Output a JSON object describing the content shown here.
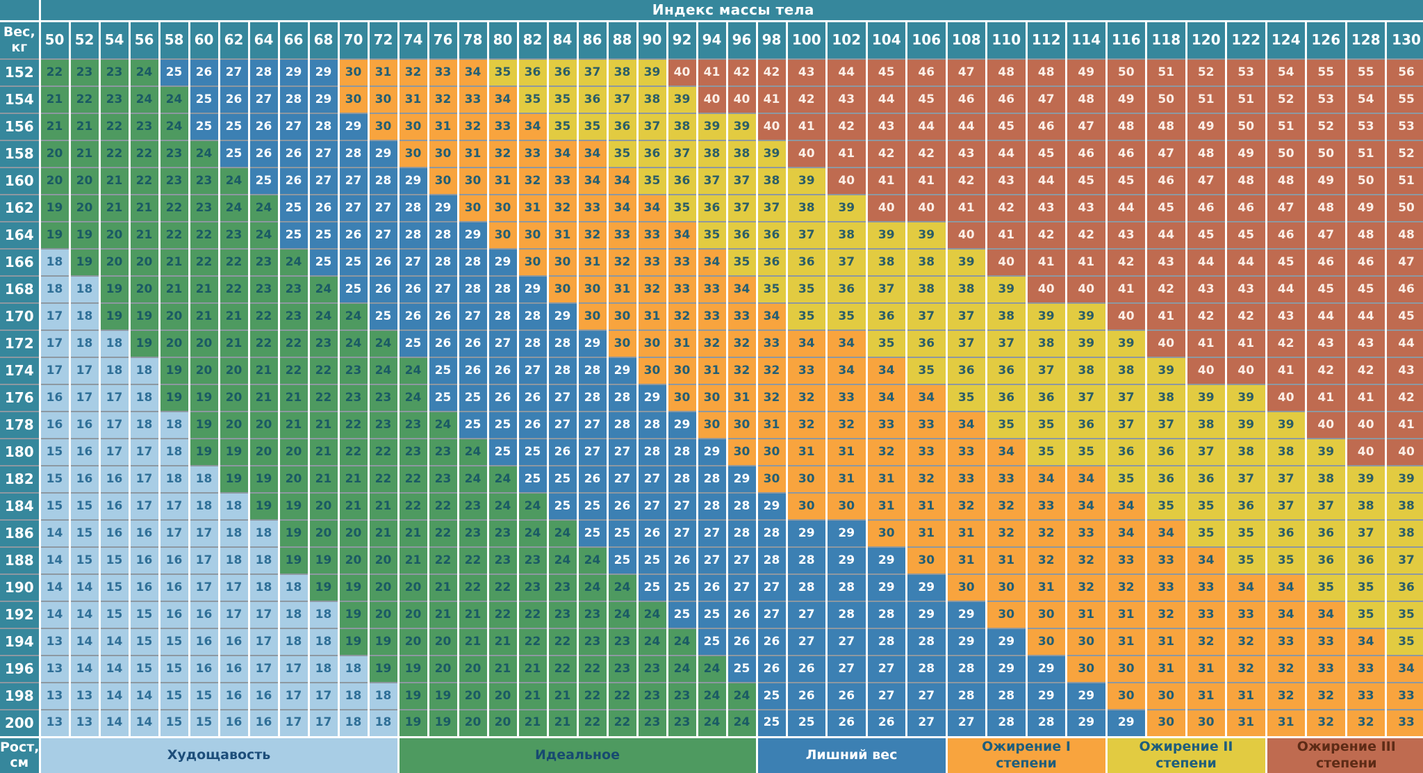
{
  "chart_data": {
    "type": "heatmap",
    "title": "Индекс массы тела",
    "xlabel": "Вес,\nкг",
    "ylabel": "Рост,\nсм",
    "x": [
      50,
      52,
      54,
      56,
      58,
      60,
      62,
      64,
      66,
      68,
      70,
      72,
      74,
      76,
      78,
      80,
      82,
      84,
      86,
      88,
      90,
      92,
      94,
      96,
      98,
      100,
      102,
      104,
      106,
      108,
      110,
      112,
      114,
      116,
      118,
      120,
      122,
      124,
      126,
      128,
      130
    ],
    "y": [
      152,
      154,
      156,
      158,
      160,
      162,
      164,
      166,
      168,
      170,
      172,
      174,
      176,
      178,
      180,
      182,
      184,
      186,
      188,
      190,
      192,
      194,
      196,
      198,
      200
    ],
    "values": [
      [
        22,
        23,
        23,
        24,
        25,
        26,
        27,
        28,
        29,
        29,
        30,
        31,
        32,
        33,
        34,
        35,
        36,
        36,
        37,
        38,
        39,
        40,
        41,
        42,
        42,
        43,
        44,
        45,
        46,
        47,
        48,
        48,
        49,
        50,
        51,
        52,
        53,
        54,
        55,
        55,
        56
      ],
      [
        21,
        22,
        23,
        24,
        24,
        25,
        26,
        27,
        28,
        29,
        30,
        30,
        31,
        32,
        33,
        34,
        35,
        35,
        36,
        37,
        38,
        39,
        40,
        40,
        41,
        42,
        43,
        44,
        45,
        46,
        46,
        47,
        48,
        49,
        50,
        51,
        51,
        52,
        53,
        54,
        55
      ],
      [
        21,
        21,
        22,
        23,
        24,
        25,
        25,
        26,
        27,
        28,
        29,
        30,
        30,
        31,
        32,
        33,
        34,
        35,
        35,
        36,
        37,
        38,
        39,
        39,
        40,
        41,
        42,
        43,
        44,
        44,
        45,
        46,
        47,
        48,
        48,
        49,
        50,
        51,
        52,
        53,
        53
      ],
      [
        20,
        21,
        22,
        22,
        23,
        24,
        25,
        26,
        26,
        27,
        28,
        29,
        30,
        30,
        31,
        32,
        33,
        34,
        34,
        35,
        36,
        37,
        38,
        38,
        39,
        40,
        41,
        42,
        42,
        43,
        44,
        45,
        46,
        46,
        47,
        48,
        49,
        50,
        50,
        51,
        52
      ],
      [
        20,
        20,
        21,
        22,
        23,
        23,
        24,
        25,
        26,
        27,
        27,
        28,
        29,
        30,
        30,
        31,
        32,
        33,
        34,
        34,
        35,
        36,
        37,
        37,
        38,
        39,
        40,
        41,
        41,
        42,
        43,
        44,
        45,
        45,
        46,
        47,
        48,
        48,
        49,
        50,
        51
      ],
      [
        19,
        20,
        21,
        21,
        22,
        23,
        24,
        24,
        25,
        26,
        27,
        27,
        28,
        29,
        30,
        30,
        31,
        32,
        33,
        34,
        34,
        35,
        36,
        37,
        37,
        38,
        39,
        40,
        40,
        41,
        42,
        43,
        43,
        44,
        45,
        46,
        46,
        47,
        48,
        49,
        50
      ],
      [
        19,
        19,
        20,
        21,
        22,
        22,
        23,
        24,
        25,
        25,
        26,
        27,
        28,
        28,
        29,
        30,
        30,
        31,
        32,
        33,
        33,
        34,
        35,
        36,
        36,
        37,
        38,
        39,
        39,
        40,
        41,
        42,
        42,
        43,
        44,
        45,
        45,
        46,
        47,
        48,
        48
      ],
      [
        18,
        19,
        20,
        20,
        21,
        22,
        22,
        23,
        24,
        25,
        25,
        26,
        27,
        28,
        28,
        29,
        30,
        30,
        31,
        32,
        33,
        33,
        34,
        35,
        36,
        36,
        37,
        38,
        38,
        39,
        40,
        41,
        41,
        42,
        43,
        44,
        44,
        45,
        46,
        46,
        47
      ],
      [
        18,
        18,
        19,
        20,
        21,
        21,
        22,
        23,
        23,
        24,
        25,
        26,
        26,
        27,
        28,
        28,
        29,
        30,
        30,
        31,
        32,
        33,
        33,
        34,
        35,
        35,
        36,
        37,
        38,
        38,
        39,
        40,
        40,
        41,
        42,
        43,
        43,
        44,
        45,
        45,
        46
      ],
      [
        17,
        18,
        19,
        19,
        20,
        21,
        21,
        22,
        23,
        24,
        24,
        25,
        26,
        26,
        27,
        28,
        28,
        29,
        30,
        30,
        31,
        32,
        33,
        33,
        34,
        35,
        35,
        36,
        37,
        37,
        38,
        39,
        39,
        40,
        41,
        42,
        42,
        43,
        44,
        44,
        45
      ],
      [
        17,
        18,
        18,
        19,
        20,
        20,
        21,
        22,
        22,
        23,
        24,
        24,
        25,
        26,
        26,
        27,
        28,
        28,
        29,
        30,
        30,
        31,
        32,
        32,
        33,
        34,
        34,
        35,
        36,
        37,
        37,
        38,
        39,
        39,
        40,
        41,
        41,
        42,
        43,
        43,
        44
      ],
      [
        17,
        17,
        18,
        18,
        19,
        20,
        20,
        21,
        22,
        22,
        23,
        24,
        24,
        25,
        26,
        26,
        27,
        28,
        28,
        29,
        30,
        30,
        31,
        32,
        32,
        33,
        34,
        34,
        35,
        36,
        36,
        37,
        38,
        38,
        39,
        40,
        40,
        41,
        42,
        42,
        43
      ],
      [
        16,
        17,
        17,
        18,
        19,
        19,
        20,
        21,
        21,
        22,
        23,
        23,
        24,
        25,
        25,
        26,
        26,
        27,
        28,
        28,
        29,
        30,
        30,
        31,
        32,
        32,
        33,
        34,
        34,
        35,
        36,
        36,
        37,
        37,
        38,
        39,
        39,
        40,
        41,
        41,
        42
      ],
      [
        16,
        16,
        17,
        18,
        18,
        19,
        20,
        20,
        21,
        21,
        22,
        23,
        23,
        24,
        25,
        25,
        26,
        27,
        27,
        28,
        28,
        29,
        30,
        30,
        31,
        32,
        32,
        33,
        33,
        34,
        35,
        35,
        36,
        37,
        37,
        38,
        39,
        39,
        40,
        40,
        41
      ],
      [
        15,
        16,
        17,
        17,
        18,
        19,
        19,
        20,
        20,
        21,
        22,
        22,
        23,
        23,
        24,
        25,
        25,
        26,
        27,
        27,
        28,
        28,
        29,
        30,
        30,
        31,
        31,
        32,
        33,
        33,
        34,
        35,
        35,
        36,
        36,
        37,
        38,
        38,
        39,
        40,
        40
      ],
      [
        15,
        16,
        16,
        17,
        18,
        18,
        19,
        19,
        20,
        21,
        21,
        22,
        22,
        23,
        24,
        24,
        25,
        25,
        26,
        27,
        27,
        28,
        28,
        29,
        30,
        30,
        31,
        31,
        32,
        33,
        33,
        34,
        34,
        35,
        36,
        36,
        37,
        37,
        38,
        39,
        39
      ],
      [
        15,
        15,
        16,
        17,
        17,
        18,
        18,
        19,
        19,
        20,
        21,
        21,
        22,
        22,
        23,
        24,
        24,
        25,
        25,
        26,
        27,
        27,
        28,
        28,
        29,
        30,
        30,
        31,
        31,
        32,
        32,
        33,
        34,
        34,
        35,
        35,
        36,
        37,
        37,
        38,
        38
      ],
      [
        14,
        15,
        16,
        16,
        17,
        17,
        18,
        18,
        19,
        20,
        20,
        21,
        21,
        22,
        23,
        23,
        24,
        24,
        25,
        25,
        26,
        27,
        27,
        28,
        28,
        29,
        29,
        30,
        31,
        31,
        32,
        32,
        33,
        34,
        34,
        35,
        35,
        36,
        36,
        37,
        38
      ],
      [
        14,
        15,
        15,
        16,
        16,
        17,
        18,
        18,
        19,
        19,
        20,
        20,
        21,
        22,
        22,
        23,
        23,
        24,
        24,
        25,
        25,
        26,
        27,
        27,
        28,
        28,
        29,
        29,
        30,
        31,
        31,
        32,
        32,
        33,
        33,
        34,
        35,
        35,
        36,
        36,
        37
      ],
      [
        14,
        14,
        15,
        16,
        16,
        17,
        17,
        18,
        18,
        19,
        19,
        20,
        20,
        21,
        22,
        22,
        23,
        23,
        24,
        24,
        25,
        25,
        26,
        27,
        27,
        28,
        28,
        29,
        29,
        30,
        30,
        31,
        32,
        32,
        33,
        33,
        34,
        34,
        35,
        35,
        36
      ],
      [
        14,
        14,
        15,
        15,
        16,
        16,
        17,
        17,
        18,
        18,
        19,
        20,
        20,
        21,
        21,
        22,
        22,
        23,
        23,
        24,
        24,
        25,
        25,
        26,
        27,
        27,
        28,
        28,
        29,
        29,
        30,
        30,
        31,
        31,
        32,
        33,
        33,
        34,
        34,
        35,
        35
      ],
      [
        13,
        14,
        14,
        15,
        15,
        16,
        16,
        17,
        18,
        18,
        19,
        19,
        20,
        20,
        21,
        21,
        22,
        22,
        23,
        23,
        24,
        24,
        25,
        26,
        26,
        27,
        27,
        28,
        28,
        29,
        29,
        30,
        30,
        31,
        31,
        32,
        32,
        33,
        33,
        34,
        35
      ],
      [
        13,
        14,
        14,
        15,
        15,
        16,
        16,
        17,
        17,
        18,
        18,
        19,
        19,
        20,
        20,
        21,
        21,
        22,
        22,
        23,
        23,
        24,
        24,
        25,
        26,
        26,
        27,
        27,
        28,
        28,
        29,
        29,
        30,
        30,
        31,
        31,
        32,
        32,
        33,
        33,
        34
      ],
      [
        13,
        13,
        14,
        14,
        15,
        15,
        16,
        16,
        17,
        17,
        18,
        18,
        19,
        19,
        20,
        20,
        21,
        21,
        22,
        22,
        23,
        23,
        24,
        24,
        25,
        26,
        26,
        27,
        27,
        28,
        28,
        29,
        29,
        30,
        30,
        31,
        31,
        32,
        32,
        33,
        33
      ],
      [
        13,
        13,
        14,
        14,
        15,
        15,
        16,
        16,
        17,
        17,
        18,
        18,
        19,
        19,
        20,
        20,
        21,
        21,
        22,
        22,
        23,
        23,
        24,
        24,
        25,
        25,
        26,
        26,
        27,
        27,
        28,
        28,
        29,
        29,
        30,
        30,
        31,
        31,
        32,
        32,
        33
      ]
    ],
    "categories": [
      {
        "id": "thin",
        "label": "Худощавость",
        "min": 0,
        "max": 18,
        "bg": "#a8cde5",
        "cell_text": "#2f6f97",
        "legend_text": "#1d4e7a",
        "legend_cols": 12
      },
      {
        "id": "ideal",
        "label": "Идеальное",
        "min": 19,
        "max": 24,
        "bg": "#4e9a60",
        "cell_text": "#1a5a64",
        "legend_text": "#174a70",
        "legend_cols": 12
      },
      {
        "id": "over",
        "label": "Лишний вес",
        "min": 25,
        "max": 29,
        "bg": "#3c80b3",
        "cell_text": "#ffffff",
        "legend_text": "#ffffff",
        "legend_cols": 5
      },
      {
        "id": "ob1",
        "label": "Ожирение I\nстепени",
        "min": 30,
        "max": 34,
        "bg": "#f8a43e",
        "cell_text": "#235e74",
        "legend_text": "#1f5e7c",
        "legend_cols": 4
      },
      {
        "id": "ob2",
        "label": "Ожирение II\nстепени",
        "min": 35,
        "max": 39,
        "bg": "#e2cb41",
        "cell_text": "#2c5e67",
        "legend_text": "#1f5e7c",
        "legend_cols": 4
      },
      {
        "id": "ob3",
        "label": "Ожирение III\nстепени",
        "min": 40,
        "max": 999,
        "bg": "#bf6b50",
        "cell_text": "#fbeee6",
        "legend_text": "#5d2b16",
        "legend_cols": 4
      }
    ],
    "legend_position": "bottom",
    "grid": true,
    "colors": {
      "header_bg": "#36879c",
      "header_text": "#ffffff",
      "grid_vertical": "#ffffff",
      "grid_horizontal": "#8d98a1"
    }
  }
}
